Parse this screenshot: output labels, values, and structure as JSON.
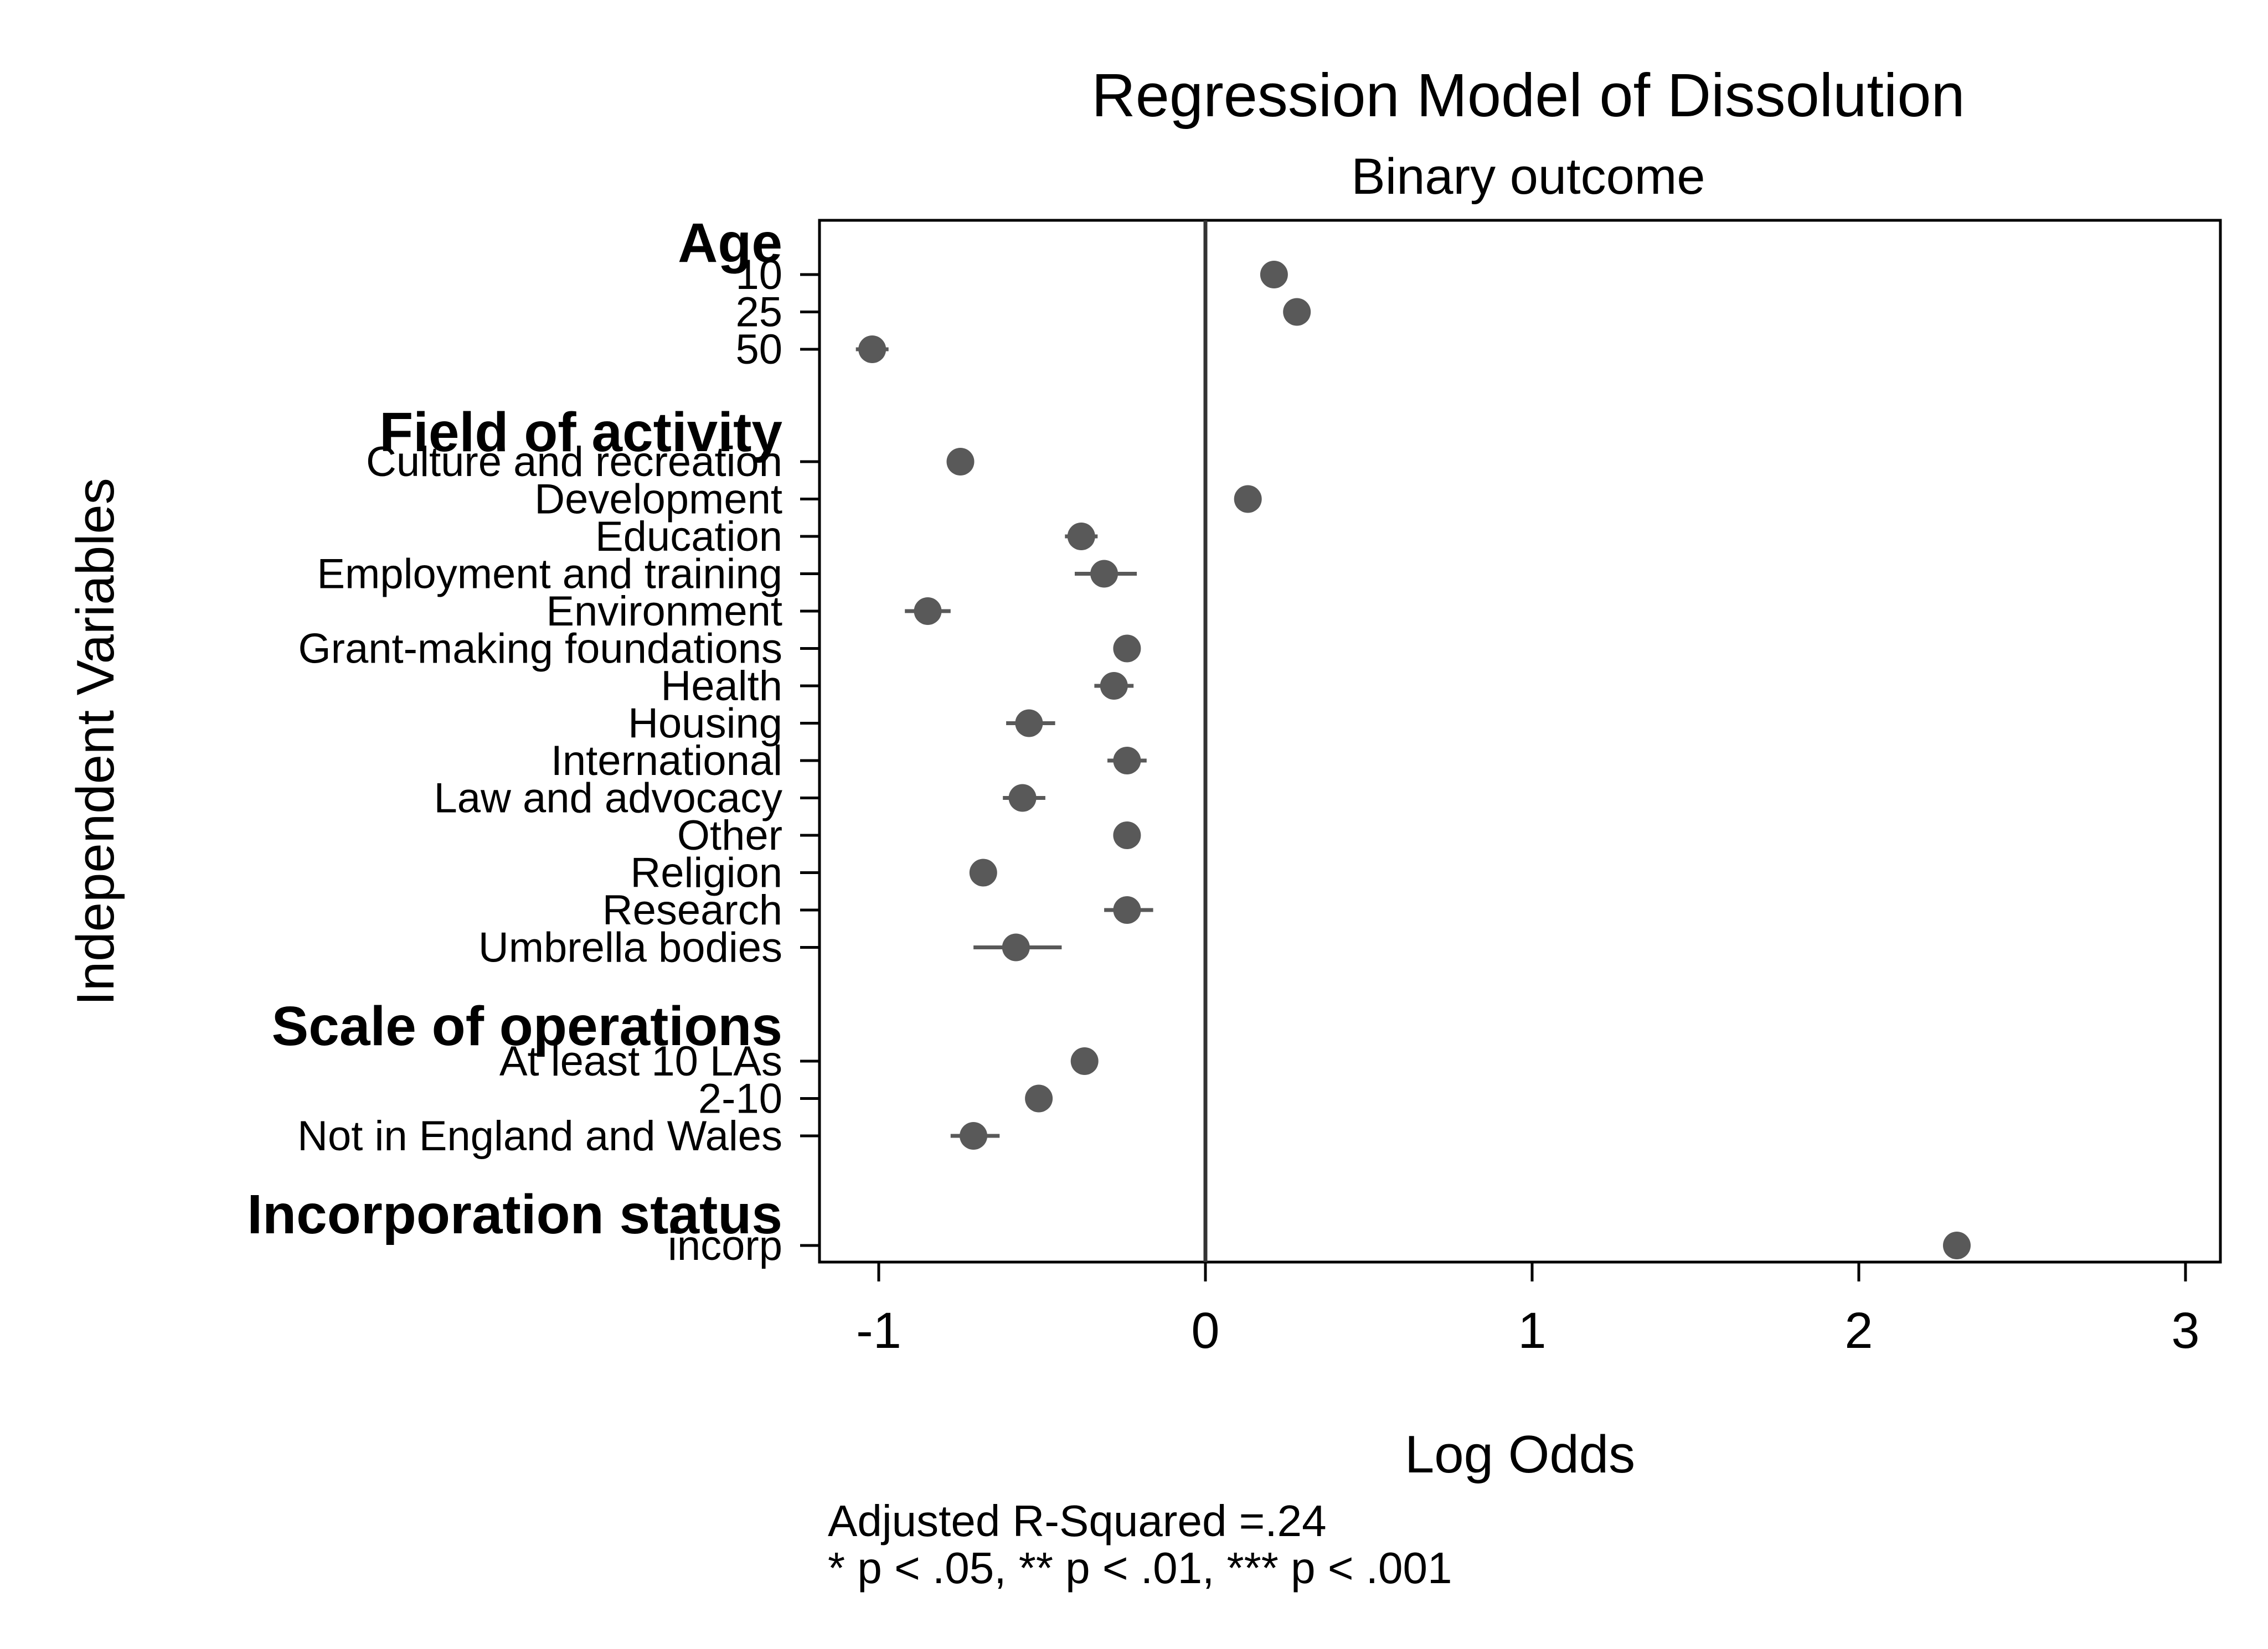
{
  "chart_data": {
    "type": "scatter",
    "title": "Regression Model of Dissolution",
    "subtitle": "Binary outcome",
    "xlabel": "Log Odds",
    "ylabel": "Independent Variables",
    "xlim": [
      -1.2,
      3.1
    ],
    "xticks": [
      -1,
      0,
      1,
      2,
      3
    ],
    "reference_line_x": 0,
    "grid": false,
    "legend": "none",
    "marker_color": "#595959",
    "notes": [
      "Adjusted R-Squared =.24",
      "* p < .05, ** p < .01, *** p < .001"
    ],
    "groups": [
      {
        "header": "Age",
        "items": [
          {
            "label": "10",
            "estimate": 0.21,
            "ci": [
              0.18,
              0.24
            ]
          },
          {
            "label": "25",
            "estimate": 0.28,
            "ci": [
              0.25,
              0.31
            ]
          },
          {
            "label": "50",
            "estimate": -1.02,
            "ci": [
              -1.07,
              -0.97
            ]
          }
        ]
      },
      {
        "header": "Field of activity",
        "items": [
          {
            "label": "Culture and recreation",
            "estimate": -0.75,
            "ci": [
              -0.78,
              -0.72
            ]
          },
          {
            "label": "Development",
            "estimate": 0.13,
            "ci": [
              0.1,
              0.16
            ]
          },
          {
            "label": "Education",
            "estimate": -0.38,
            "ci": [
              -0.43,
              -0.33
            ]
          },
          {
            "label": "Employment and training",
            "estimate": -0.31,
            "ci": [
              -0.4,
              -0.21
            ]
          },
          {
            "label": "Environment",
            "estimate": -0.85,
            "ci": [
              -0.92,
              -0.78
            ]
          },
          {
            "label": "Grant-making foundations",
            "estimate": -0.24,
            "ci": [
              -0.28,
              -0.2
            ]
          },
          {
            "label": "Health",
            "estimate": -0.28,
            "ci": [
              -0.34,
              -0.22
            ]
          },
          {
            "label": "Housing",
            "estimate": -0.54,
            "ci": [
              -0.61,
              -0.46
            ]
          },
          {
            "label": "International",
            "estimate": -0.24,
            "ci": [
              -0.3,
              -0.18
            ]
          },
          {
            "label": "Law and advocacy",
            "estimate": -0.56,
            "ci": [
              -0.62,
              -0.49
            ]
          },
          {
            "label": "Other",
            "estimate": -0.24,
            "ci": [
              -0.27,
              -0.21
            ]
          },
          {
            "label": "Religion",
            "estimate": -0.68,
            "ci": [
              -0.71,
              -0.65
            ]
          },
          {
            "label": "Research",
            "estimate": -0.24,
            "ci": [
              -0.31,
              -0.16
            ]
          },
          {
            "label": "Umbrella bodies",
            "estimate": -0.58,
            "ci": [
              -0.71,
              -0.44
            ]
          }
        ]
      },
      {
        "header": "Scale of operations",
        "items": [
          {
            "label": "At least 10 LAs",
            "estimate": -0.37,
            "ci": [
              -0.4,
              -0.34
            ]
          },
          {
            "label": "2-10",
            "estimate": -0.51,
            "ci": [
              -0.54,
              -0.48
            ]
          },
          {
            "label": "Not in England and Wales",
            "estimate": -0.71,
            "ci": [
              -0.78,
              -0.63
            ]
          }
        ]
      },
      {
        "header": "Incorporation status",
        "items": [
          {
            "label": "incorp",
            "estimate": 2.3,
            "ci": [
              2.27,
              2.33
            ]
          }
        ]
      }
    ]
  }
}
